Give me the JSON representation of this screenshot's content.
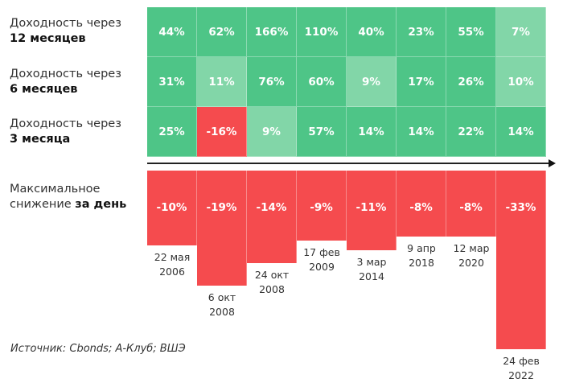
{
  "chart_data": {
    "type": "heatmap",
    "rows": [
      {
        "label_line1": "Доходность через",
        "label_line2": "12 месяцев",
        "values": [
          "44%",
          "62%",
          "166%",
          "110%",
          "40%",
          "23%",
          "55%",
          "7%"
        ],
        "numeric": [
          44,
          62,
          166,
          110,
          40,
          23,
          55,
          7
        ]
      },
      {
        "label_line1": "Доходность через",
        "label_line2": "6 месяцев",
        "values": [
          "31%",
          "11%",
          "76%",
          "60%",
          "9%",
          "17%",
          "26%",
          "10%"
        ],
        "numeric": [
          31,
          11,
          76,
          60,
          9,
          17,
          26,
          10
        ]
      },
      {
        "label_line1": "Доходность через",
        "label_line2": "3 месяца",
        "values": [
          "25%",
          "-16%",
          "9%",
          "57%",
          "14%",
          "14%",
          "22%",
          "14%"
        ],
        "numeric": [
          25,
          -16,
          9,
          57,
          14,
          14,
          22,
          14
        ]
      }
    ],
    "drawdown": {
      "label_line1": "Максимальное",
      "label_line2_normal": "снижение ",
      "label_line2_bold": "за день",
      "type": "bar",
      "values": [
        "-10%",
        "-19%",
        "-14%",
        "-9%",
        "-11%",
        "-8%",
        "-8%",
        "-33%"
      ],
      "numeric": [
        -10,
        -19,
        -14,
        -9,
        -11,
        -8,
        -8,
        -33
      ],
      "dates": [
        [
          "22 мая",
          "2006"
        ],
        [
          "6 окт",
          "2008"
        ],
        [
          "24 окт",
          "2008"
        ],
        [
          "17 фев",
          "2009"
        ],
        [
          "3 мар",
          "2014"
        ],
        [
          "9 апр",
          "2018"
        ],
        [
          "12 мар",
          "2020"
        ],
        [
          "24 фев",
          "2022"
        ]
      ]
    },
    "colors": {
      "strong_green": "#4ec587",
      "weak_green": "#82d6a8",
      "red": "#f54b4e"
    },
    "weak_threshold": 12
  },
  "source": "Источник: Cbonds; А-Клуб; ВШЭ"
}
